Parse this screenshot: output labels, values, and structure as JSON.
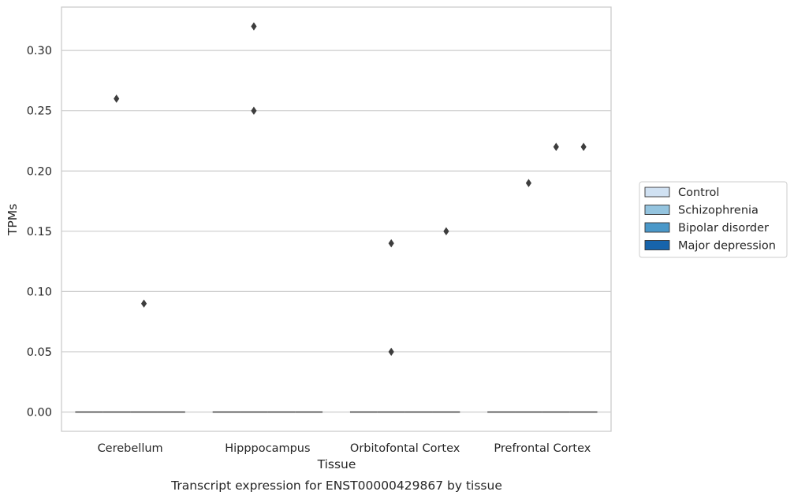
{
  "chart_data": {
    "type": "box",
    "caption": "Transcript expression for ENST00000429867 by tissue",
    "xlabel": "Tissue",
    "ylabel": "TPMs",
    "ylim": [
      -0.016,
      0.336
    ],
    "yticks": [
      0.0,
      0.05,
      0.1,
      0.15,
      0.2,
      0.25,
      0.3
    ],
    "ytick_labels": [
      "0.00",
      "0.05",
      "0.10",
      "0.15",
      "0.20",
      "0.25",
      "0.30"
    ],
    "grid": "horizontal",
    "legend_position": "outside-right",
    "categories": [
      "Cerebellum",
      "Hipppocampus",
      "Orbitofontal Cortex",
      "Prefrontal Cortex"
    ],
    "series": [
      {
        "name": "Control",
        "color": "#d0e1f2",
        "median": [
          0,
          0,
          0,
          0
        ],
        "outliers": [
          [],
          [],
          [],
          []
        ]
      },
      {
        "name": "Schizophrenia",
        "color": "#94c4df",
        "median": [
          0,
          0,
          0,
          0
        ],
        "outliers": [
          [
            0.26
          ],
          [
            0.32,
            0.25
          ],
          [
            0.14,
            0.05
          ],
          [
            0.19
          ]
        ]
      },
      {
        "name": "Bipolar disorder",
        "color": "#4a98c9",
        "median": [
          0,
          0,
          0,
          0
        ],
        "outliers": [
          [
            0.09
          ],
          [],
          [],
          [
            0.22
          ]
        ]
      },
      {
        "name": "Major depression",
        "color": "#1764ab",
        "median": [
          0,
          0,
          0,
          0
        ],
        "outliers": [
          [],
          [],
          [
            0.15
          ],
          [
            0.22
          ]
        ]
      }
    ],
    "colors": {
      "grid": "#cccccc",
      "frame": "#cccccc",
      "line": "#3d3d3d"
    }
  }
}
